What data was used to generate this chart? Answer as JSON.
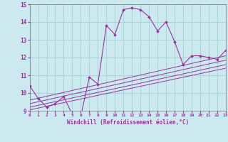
{
  "xlabel": "Windchill (Refroidissement éolien,°C)",
  "background_color": "#cce9f0",
  "grid_color": "#99cccc",
  "line_color": "#993399",
  "tick_color": "#993399",
  "xmin": 0,
  "xmax": 23,
  "ymin": 9,
  "ymax": 15,
  "x_ticks": [
    0,
    1,
    2,
    3,
    4,
    5,
    6,
    7,
    8,
    9,
    10,
    11,
    12,
    13,
    14,
    15,
    16,
    17,
    18,
    19,
    20,
    21,
    22,
    23
  ],
  "y_ticks": [
    9,
    10,
    11,
    12,
    13,
    14,
    15
  ],
  "main_series_x": [
    0,
    1,
    2,
    3,
    4,
    5,
    6,
    7,
    8,
    9,
    10,
    11,
    12,
    13,
    14,
    15,
    16,
    17,
    18,
    19,
    20,
    21,
    22,
    23
  ],
  "main_series_y": [
    10.4,
    9.7,
    9.2,
    9.4,
    9.8,
    8.8,
    8.7,
    10.9,
    10.5,
    13.8,
    13.3,
    14.7,
    14.8,
    14.7,
    14.3,
    13.5,
    14.0,
    12.9,
    11.6,
    12.1,
    12.1,
    12.0,
    11.9,
    12.4
  ],
  "line1_x": [
    0,
    23
  ],
  "line1_y": [
    9.6,
    12.1
  ],
  "line2_x": [
    0,
    23
  ],
  "line2_y": [
    9.4,
    11.85
  ],
  "line3_x": [
    0,
    23
  ],
  "line3_y": [
    9.2,
    11.6
  ],
  "line4_x": [
    0,
    23
  ],
  "line4_y": [
    9.05,
    11.4
  ]
}
